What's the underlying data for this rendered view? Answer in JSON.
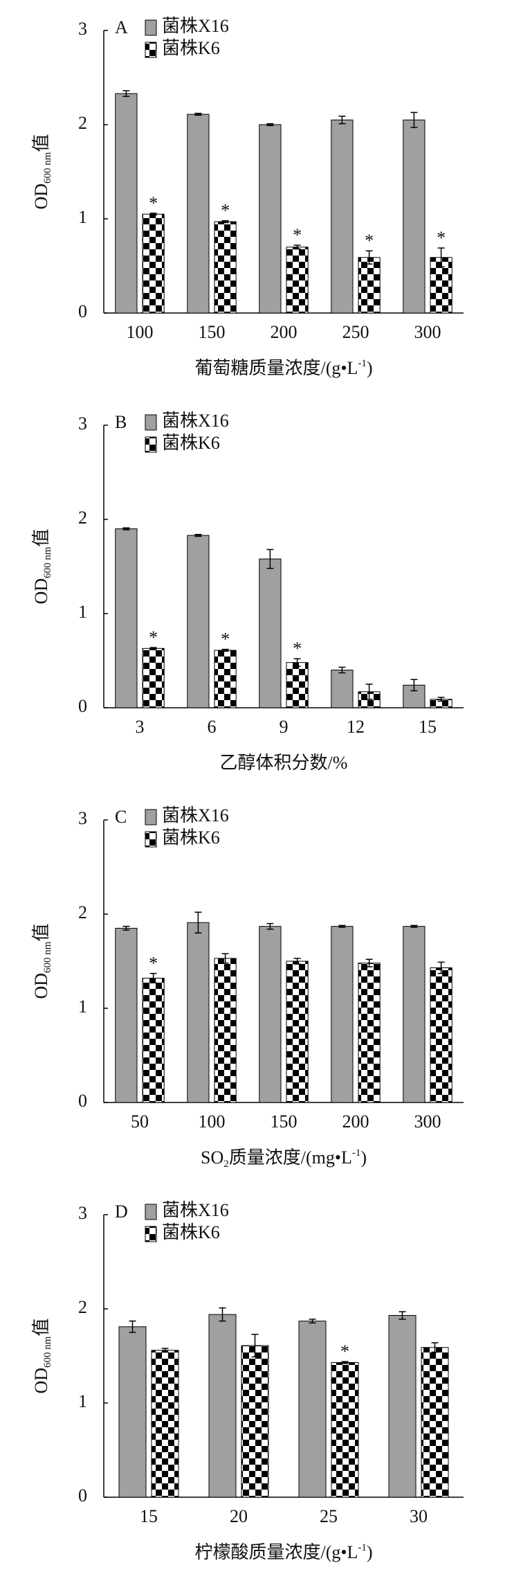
{
  "chart_data": [
    {
      "type": "bar",
      "panel": "A",
      "y_label": [
        {
          "text": "OD"
        },
        {
          "text": "600 nm",
          "sub": true
        },
        {
          "text": "值"
        }
      ],
      "x_label": [
        {
          "text": "葡萄糖质量浓度/(g•L"
        },
        {
          "text": "-1",
          "sup": true
        },
        {
          "text": ")"
        }
      ],
      "categories": [
        "100",
        "150",
        "200",
        "250",
        "300"
      ],
      "series": [
        {
          "name": "菌株X16",
          "color": "#a0a0a0",
          "values": [
            2.33,
            2.11,
            2.0,
            2.05,
            2.05
          ],
          "errors": [
            0.03,
            0.01,
            0.01,
            0.04,
            0.08
          ],
          "significance": [
            null,
            null,
            null,
            null,
            null
          ]
        },
        {
          "name": "菌株K6",
          "color": "#000000",
          "pattern": "checker",
          "values": [
            1.05,
            0.97,
            0.7,
            0.59,
            0.59
          ],
          "errors": [
            0.01,
            0.01,
            0.02,
            0.07,
            0.1
          ],
          "significance": [
            "*",
            "*",
            "*",
            "*",
            "*"
          ]
        }
      ],
      "ylim": [
        0,
        3
      ],
      "yticks": [
        0,
        1,
        2,
        3
      ]
    },
    {
      "type": "bar",
      "panel": "B",
      "y_label": [
        {
          "text": "OD"
        },
        {
          "text": "600 nm",
          "sub": true
        },
        {
          "text": "值"
        }
      ],
      "x_label": [
        {
          "text": "乙醇体积分数/%"
        }
      ],
      "categories": [
        "3",
        "6",
        "9",
        "12",
        "15"
      ],
      "series": [
        {
          "name": "菌株X16",
          "color": "#a0a0a0",
          "values": [
            1.9,
            1.83,
            1.58,
            0.4,
            0.24
          ],
          "errors": [
            0.01,
            0.01,
            0.1,
            0.03,
            0.06
          ],
          "significance": [
            null,
            null,
            null,
            null,
            null
          ]
        },
        {
          "name": "菌株K6",
          "color": "#000000",
          "pattern": "checker",
          "values": [
            0.63,
            0.61,
            0.48,
            0.17,
            0.09
          ],
          "errors": [
            0.01,
            0.01,
            0.04,
            0.08,
            0.02
          ],
          "significance": [
            "*",
            "*",
            "*",
            null,
            null
          ]
        }
      ],
      "ylim": [
        0,
        3
      ],
      "yticks": [
        0,
        1,
        2,
        3
      ]
    },
    {
      "type": "bar",
      "panel": "C",
      "y_label": [
        {
          "text": "OD"
        },
        {
          "text": "600 nm",
          "sub": true
        },
        {
          "text": "值"
        }
      ],
      "x_label": [
        {
          "text": "SO"
        },
        {
          "text": "2",
          "sub": true
        },
        {
          "text": "质量浓度/(mg•L"
        },
        {
          "text": "-1",
          "sup": true
        },
        {
          "text": ")"
        }
      ],
      "categories": [
        "50",
        "100",
        "150",
        "200",
        "300"
      ],
      "series": [
        {
          "name": "菌株X16",
          "color": "#a0a0a0",
          "values": [
            1.85,
            1.91,
            1.87,
            1.87,
            1.87
          ],
          "errors": [
            0.02,
            0.11,
            0.03,
            0.01,
            0.01
          ],
          "significance": [
            null,
            null,
            null,
            null,
            null
          ]
        },
        {
          "name": "菌株K6",
          "color": "#000000",
          "pattern": "checker",
          "values": [
            1.32,
            1.53,
            1.5,
            1.48,
            1.43
          ],
          "errors": [
            0.05,
            0.05,
            0.03,
            0.04,
            0.06
          ],
          "significance": [
            "*",
            null,
            null,
            null,
            null
          ]
        }
      ],
      "ylim": [
        0,
        3
      ],
      "yticks": [
        0,
        1,
        2,
        3
      ]
    },
    {
      "type": "bar",
      "panel": "D",
      "y_label": [
        {
          "text": "OD"
        },
        {
          "text": "600 nm",
          "sub": true
        },
        {
          "text": "值"
        }
      ],
      "x_label": [
        {
          "text": "柠檬酸质量浓度/(g•L"
        },
        {
          "text": "-1",
          "sup": true
        },
        {
          "text": ")"
        }
      ],
      "categories": [
        "15",
        "20",
        "25",
        "30"
      ],
      "series": [
        {
          "name": "菌株X16",
          "color": "#a0a0a0",
          "values": [
            1.81,
            1.94,
            1.87,
            1.93
          ],
          "errors": [
            0.06,
            0.07,
            0.02,
            0.04
          ],
          "significance": [
            null,
            null,
            null,
            null
          ]
        },
        {
          "name": "菌株K6",
          "color": "#000000",
          "pattern": "checker",
          "values": [
            1.56,
            1.61,
            1.43,
            1.59
          ],
          "errors": [
            0.02,
            0.12,
            0.01,
            0.05
          ],
          "significance": [
            null,
            null,
            "*",
            null
          ]
        }
      ],
      "ylim": [
        0,
        3
      ],
      "yticks": [
        0,
        1,
        2,
        3
      ]
    }
  ]
}
